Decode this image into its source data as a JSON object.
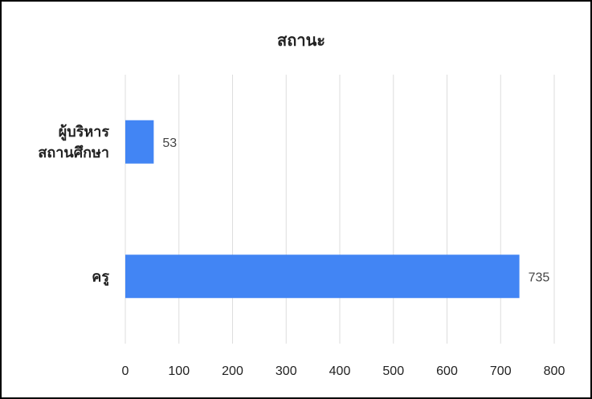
{
  "chart_data": {
    "type": "bar",
    "orientation": "horizontal",
    "title": "สถานะ",
    "categories": [
      [
        "ผู้บริหาร",
        "สถานศึกษา"
      ],
      [
        "ครู"
      ]
    ],
    "values": [
      53,
      735
    ],
    "data_labels": [
      "53",
      "735"
    ],
    "xlim": [
      0,
      800
    ],
    "xticks": [
      0,
      100,
      200,
      300,
      400,
      500,
      600,
      700,
      800
    ],
    "grid": "vertical",
    "legend": "none",
    "bar_color": "#4285F4"
  }
}
